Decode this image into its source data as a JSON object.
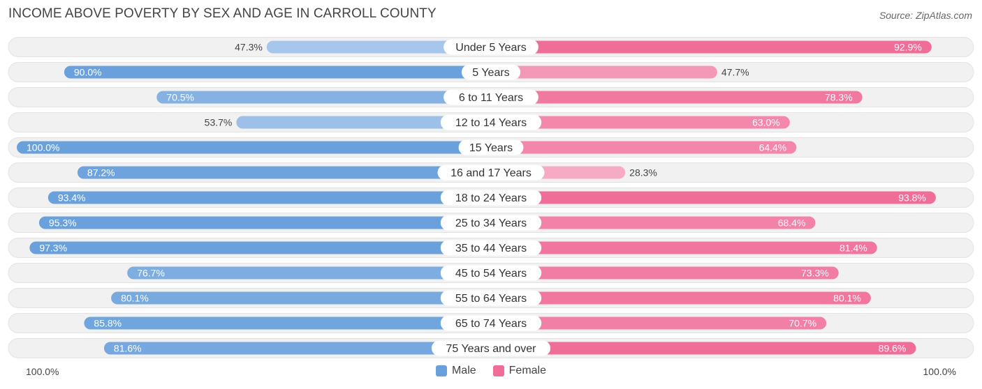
{
  "title": "INCOME ABOVE POVERTY BY SEX AND AGE IN CARROLL COUNTY",
  "source": "Source: ZipAtlas.com",
  "axis": {
    "left_label": "100.0%",
    "right_label": "100.0%"
  },
  "legend": {
    "male_label": "Male",
    "female_label": "Female"
  },
  "colors": {
    "male_strong": "#6aa1dc",
    "male_light": "#a9c8ec",
    "female_strong": "#f06d98",
    "female_light": "#f7aac4",
    "row_bg": "#f1f1f1"
  },
  "chart_data": {
    "type": "bar",
    "orientation": "horizontal-diverging",
    "title": "INCOME ABOVE POVERTY BY SEX AND AGE IN CARROLL COUNTY",
    "xlim": [
      0,
      100
    ],
    "categories": [
      "Under 5 Years",
      "5 Years",
      "6 to 11 Years",
      "12 to 14 Years",
      "15 Years",
      "16 and 17 Years",
      "18 to 24 Years",
      "25 to 34 Years",
      "35 to 44 Years",
      "45 to 54 Years",
      "55 to 64 Years",
      "65 to 74 Years",
      "75 Years and over"
    ],
    "series": [
      {
        "name": "Male",
        "values": [
          47.3,
          90.0,
          70.5,
          53.7,
          100.0,
          87.2,
          93.4,
          95.3,
          97.3,
          76.7,
          80.1,
          85.8,
          81.6
        ],
        "labels": [
          "47.3%",
          "90.0%",
          "70.5%",
          "53.7%",
          "100.0%",
          "87.2%",
          "93.4%",
          "95.3%",
          "97.3%",
          "76.7%",
          "80.1%",
          "85.8%",
          "81.6%"
        ]
      },
      {
        "name": "Female",
        "values": [
          92.9,
          47.7,
          78.3,
          63.0,
          64.4,
          28.3,
          93.8,
          68.4,
          81.4,
          73.3,
          80.1,
          70.7,
          89.6
        ],
        "labels": [
          "92.9%",
          "47.7%",
          "78.3%",
          "63.0%",
          "64.4%",
          "28.3%",
          "93.8%",
          "68.4%",
          "81.4%",
          "73.3%",
          "80.1%",
          "70.7%",
          "89.6%"
        ]
      }
    ]
  }
}
